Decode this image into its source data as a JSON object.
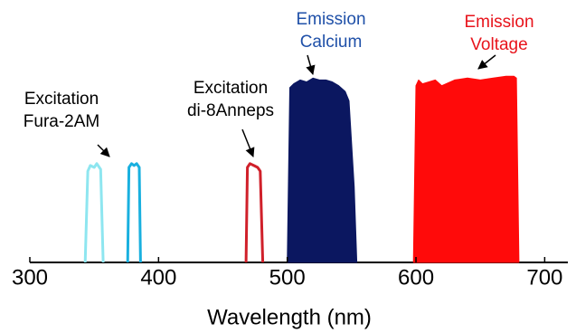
{
  "chart_data": {
    "type": "line",
    "xlabel": "Wavelength (nm)",
    "xlim": [
      300,
      718
    ],
    "xticks": [
      300,
      400,
      500,
      600,
      700
    ],
    "ylim": [
      0,
      100
    ],
    "series": [
      {
        "color": "#8ee6f0",
        "fill": false,
        "x": [
          343,
          345,
          347,
          350,
          352,
          355,
          357
        ],
        "values": [
          0,
          48,
          51,
          50,
          52,
          49,
          0
        ]
      },
      {
        "color": "#19b0df",
        "fill": false,
        "x": [
          376,
          377,
          379,
          381,
          383,
          385,
          386
        ],
        "values": [
          0,
          50,
          52,
          51,
          52,
          50,
          0
        ]
      },
      {
        "color": "#d0202a",
        "fill": false,
        "x": [
          468,
          469,
          471,
          474,
          477,
          479,
          481
        ],
        "values": [
          0,
          50,
          52,
          51,
          50,
          48,
          0
        ]
      },
      {
        "color": "#0b1760",
        "fill": true,
        "x": [
          500,
          502,
          505,
          510,
          515,
          520,
          525,
          530,
          535,
          540,
          545,
          548,
          552,
          554
        ],
        "values": [
          0,
          92,
          94,
          96,
          95,
          97,
          96,
          96,
          95,
          93,
          90,
          85,
          40,
          0
        ]
      },
      {
        "color": "#ff0a0a",
        "fill": true,
        "x": [
          598,
          600,
          602,
          605,
          610,
          615,
          620,
          630,
          640,
          650,
          660,
          670,
          676,
          678,
          680
        ],
        "values": [
          0,
          93,
          96,
          94,
          95,
          96,
          93,
          96,
          97,
          96,
          97,
          98,
          98,
          97,
          0
        ]
      }
    ],
    "annotations": [
      {
        "text": [
          "Excitation",
          "Fura-2AM"
        ],
        "color": "#000000"
      },
      {
        "text": [
          "Excitation",
          "di-8Anneps"
        ],
        "color": "#000000"
      },
      {
        "text": [
          "Emission",
          "Calcium"
        ],
        "color": "#1f50a8"
      },
      {
        "text": [
          "Emission",
          "Voltage"
        ],
        "color": "#e8141c"
      }
    ]
  }
}
